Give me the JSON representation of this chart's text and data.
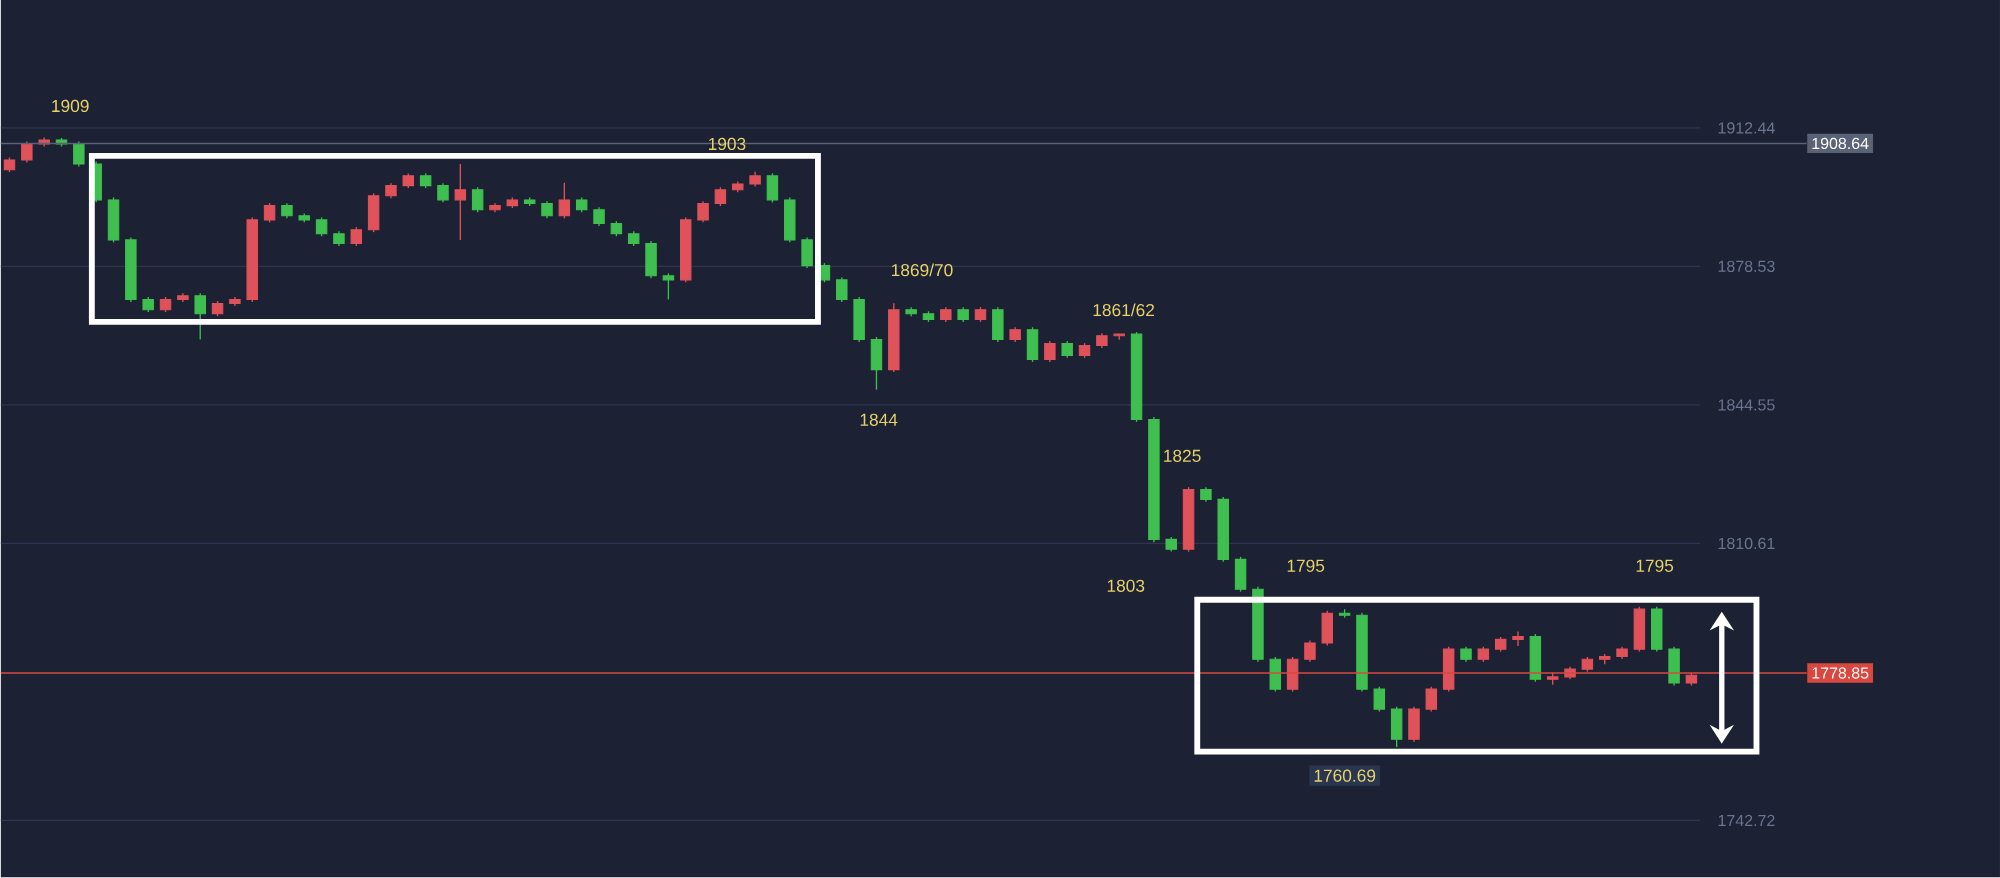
{
  "chart_data": {
    "type": "candlestick",
    "categories": [
      null,
      null,
      null,
      null,
      null,
      null,
      null,
      null,
      null,
      null,
      null,
      null,
      null,
      null,
      null,
      null,
      null,
      null,
      null,
      null,
      null,
      null,
      null,
      null,
      null,
      null,
      null,
      null,
      null,
      null,
      null,
      null,
      null,
      null,
      null,
      null,
      null,
      null,
      null,
      null,
      null,
      null,
      null,
      null,
      null,
      null,
      null,
      null,
      null,
      null,
      null,
      null,
      null,
      null,
      null,
      null,
      null,
      null,
      null,
      null,
      null,
      null,
      null,
      null,
      null,
      null,
      null,
      null,
      null,
      null,
      null,
      null,
      null,
      null,
      null,
      null,
      null,
      null,
      null,
      null,
      null,
      null,
      null,
      null,
      null,
      null,
      null,
      null,
      null,
      null,
      null,
      null,
      null,
      null,
      null,
      null,
      null,
      null
    ],
    "ohlc": [
      [
        1902.2,
        1905.2,
        1901.6,
        1904.6
      ],
      [
        1904.6,
        1909.1,
        1904.0,
        1908.5
      ],
      [
        1908.5,
        1910.1,
        1907.9,
        1909.5
      ],
      [
        1909.5,
        1910.0,
        1907.9,
        1908.5
      ],
      [
        1908.5,
        1909.1,
        1903.0,
        1903.6
      ],
      [
        1903.6,
        1904.2,
        1894.2,
        1894.8
      ],
      [
        1894.8,
        1895.4,
        1884.4,
        1885.0
      ],
      [
        1885.0,
        1885.6,
        1869.8,
        1870.4
      ],
      [
        1870.4,
        1871.0,
        1867.3,
        1867.9
      ],
      [
        1867.9,
        1871.0,
        1867.3,
        1870.4
      ],
      [
        1870.4,
        1871.9,
        1869.8,
        1871.3
      ],
      [
        1871.3,
        1871.9,
        1860.6,
        1866.9
      ],
      [
        1866.9,
        1870.0,
        1866.3,
        1869.4
      ],
      [
        1869.4,
        1871.0,
        1868.8,
        1870.4
      ],
      [
        1870.4,
        1890.5,
        1869.8,
        1889.9
      ],
      [
        1889.9,
        1894.0,
        1889.3,
        1893.4
      ],
      [
        1893.4,
        1894.0,
        1890.3,
        1890.9
      ],
      [
        1890.9,
        1891.5,
        1889.3,
        1889.9
      ],
      [
        1889.9,
        1890.5,
        1885.9,
        1886.5
      ],
      [
        1886.5,
        1887.1,
        1883.5,
        1884.1
      ],
      [
        1884.1,
        1888.1,
        1883.5,
        1887.5
      ],
      [
        1887.5,
        1896.4,
        1886.9,
        1895.8
      ],
      [
        1895.8,
        1898.9,
        1895.2,
        1898.3
      ],
      [
        1898.3,
        1901.3,
        1897.7,
        1900.7
      ],
      [
        1900.7,
        1901.3,
        1897.7,
        1898.3
      ],
      [
        1898.3,
        1898.9,
        1894.2,
        1894.8
      ],
      [
        1894.8,
        1903.6,
        1885.0,
        1897.3
      ],
      [
        1897.3,
        1897.9,
        1891.8,
        1892.4
      ],
      [
        1892.4,
        1894.0,
        1891.8,
        1893.4
      ],
      [
        1893.4,
        1895.4,
        1892.8,
        1894.8
      ],
      [
        1894.8,
        1895.4,
        1893.3,
        1893.9
      ],
      [
        1893.9,
        1894.5,
        1890.3,
        1890.9
      ],
      [
        1890.9,
        1899.0,
        1890.3,
        1894.8
      ],
      [
        1894.8,
        1895.4,
        1891.8,
        1892.4
      ],
      [
        1892.4,
        1893.0,
        1888.4,
        1889.0
      ],
      [
        1889.0,
        1889.6,
        1885.9,
        1886.5
      ],
      [
        1886.5,
        1887.1,
        1883.5,
        1884.1
      ],
      [
        1884.1,
        1884.7,
        1875.6,
        1876.2
      ],
      [
        1876.2,
        1876.8,
        1870.4,
        1875.2
      ],
      [
        1875.2,
        1890.5,
        1874.6,
        1889.9
      ],
      [
        1889.9,
        1894.5,
        1889.3,
        1893.9
      ],
      [
        1893.9,
        1897.9,
        1893.3,
        1897.3
      ],
      [
        1897.3,
        1899.3,
        1896.7,
        1898.7
      ],
      [
        1898.7,
        1901.7,
        1898.1,
        1900.7
      ],
      [
        1900.7,
        1901.3,
        1894.2,
        1894.8
      ],
      [
        1894.8,
        1895.4,
        1884.4,
        1885.0
      ],
      [
        1885.0,
        1885.6,
        1878.1,
        1878.7
      ],
      [
        1878.7,
        1879.3,
        1874.6,
        1875.2
      ],
      [
        1875.2,
        1875.8,
        1869.8,
        1870.4
      ],
      [
        1870.4,
        1871.0,
        1860.0,
        1860.6
      ],
      [
        1860.6,
        1861.2,
        1848.3,
        1853.2
      ],
      [
        1853.2,
        1869.5,
        1852.6,
        1867.9
      ],
      [
        1867.9,
        1868.5,
        1866.3,
        1866.9
      ],
      [
        1866.9,
        1867.5,
        1864.9,
        1865.5
      ],
      [
        1865.5,
        1868.5,
        1864.9,
        1867.9
      ],
      [
        1867.9,
        1868.5,
        1864.9,
        1865.5
      ],
      [
        1865.5,
        1868.5,
        1864.9,
        1867.9
      ],
      [
        1867.9,
        1868.5,
        1860.0,
        1860.6
      ],
      [
        1860.6,
        1863.6,
        1860.0,
        1863.0
      ],
      [
        1863.0,
        1863.6,
        1855.1,
        1855.7
      ],
      [
        1855.7,
        1860.2,
        1855.1,
        1859.6
      ],
      [
        1859.6,
        1860.2,
        1856.1,
        1856.7
      ],
      [
        1856.7,
        1859.7,
        1856.1,
        1859.1
      ],
      [
        1859.1,
        1862.1,
        1858.5,
        1861.5
      ],
      [
        1861.5,
        1862.0,
        1860.5,
        1861.9
      ],
      [
        1861.9,
        1862.4,
        1840.4,
        1841.0
      ],
      [
        1841.0,
        1841.6,
        1810.9,
        1811.6
      ],
      [
        1811.6,
        1812.2,
        1808.6,
        1809.2
      ],
      [
        1809.2,
        1824.4,
        1808.6,
        1823.8
      ],
      [
        1823.8,
        1824.4,
        1820.8,
        1821.4
      ],
      [
        1821.4,
        1822.0,
        1806.1,
        1806.7
      ],
      [
        1806.7,
        1807.3,
        1798.8,
        1799.4
      ],
      [
        1799.4,
        1800.0,
        1781.6,
        1782.2
      ],
      [
        1782.2,
        1782.8,
        1774.3,
        1774.9
      ],
      [
        1774.9,
        1782.8,
        1774.3,
        1782.2
      ],
      [
        1782.2,
        1786.8,
        1781.6,
        1786.2
      ],
      [
        1786.2,
        1794.1,
        1785.6,
        1793.5
      ],
      [
        1793.5,
        1794.5,
        1792.4,
        1793.0
      ],
      [
        1793.0,
        1793.6,
        1774.3,
        1774.9
      ],
      [
        1774.9,
        1775.5,
        1769.4,
        1770.0
      ],
      [
        1770.0,
        1770.6,
        1760.7,
        1762.6
      ],
      [
        1762.6,
        1770.6,
        1762.0,
        1770.0
      ],
      [
        1770.0,
        1775.5,
        1769.4,
        1774.9
      ],
      [
        1774.9,
        1785.3,
        1774.3,
        1784.7
      ],
      [
        1784.7,
        1785.3,
        1781.6,
        1782.2
      ],
      [
        1782.2,
        1785.3,
        1781.6,
        1784.7
      ],
      [
        1784.7,
        1787.7,
        1784.1,
        1787.1
      ],
      [
        1787.1,
        1789.0,
        1785.5,
        1787.8
      ],
      [
        1787.8,
        1788.4,
        1776.7,
        1777.3
      ],
      [
        1777.3,
        1779.0,
        1776.0,
        1777.9
      ],
      [
        1777.9,
        1780.4,
        1777.3,
        1779.8
      ],
      [
        1779.8,
        1782.8,
        1779.2,
        1782.2
      ],
      [
        1782.2,
        1783.5,
        1781.0,
        1782.9
      ],
      [
        1782.9,
        1785.3,
        1782.3,
        1784.7
      ],
      [
        1784.7,
        1795.1,
        1784.1,
        1794.5
      ],
      [
        1794.5,
        1795.1,
        1784.1,
        1784.7
      ],
      [
        1784.7,
        1785.3,
        1775.8,
        1776.4
      ],
      [
        1776.4,
        1778.9,
        1775.8,
        1778.3
      ]
    ],
    "ylim": [
      1728.7,
      1943.8
    ],
    "yticks": [
      {
        "value": 1742.72,
        "label": "1742.72"
      },
      {
        "value": 1810.61,
        "label": "1810.61"
      },
      {
        "value": 1844.55,
        "label": "1844.55"
      },
      {
        "value": 1878.53,
        "label": "1878.53"
      },
      {
        "value": 1912.44,
        "label": "1912.44"
      }
    ],
    "tick_labels": "y",
    "grid": "y",
    "ref_lines": [
      {
        "axis": "y",
        "value": 1908.64,
        "label": "1908.64",
        "color": "#5a6276"
      },
      {
        "axis": "y",
        "value": 1778.85,
        "label": "1778.85",
        "color": "#d9483f"
      }
    ],
    "annotations": [
      "1909",
      "1903",
      "1869/70",
      "1844",
      "1861/62",
      "1825",
      "1803",
      "1795",
      "1795",
      "1760.69"
    ]
  }
}
